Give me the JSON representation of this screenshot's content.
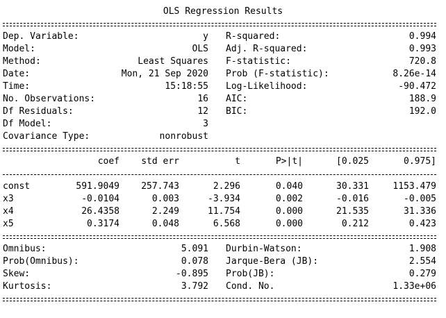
{
  "title": "OLS Regression Results",
  "summary": {
    "rows": [
      {
        "left": {
          "label": "Dep. Variable:",
          "value": "y"
        },
        "right": {
          "label": "R-squared:",
          "value": "0.994"
        }
      },
      {
        "left": {
          "label": "Model:",
          "value": "OLS"
        },
        "right": {
          "label": "Adj. R-squared:",
          "value": "0.993"
        }
      },
      {
        "left": {
          "label": "Method:",
          "value": "Least Squares"
        },
        "right": {
          "label": "F-statistic:",
          "value": "720.8"
        }
      },
      {
        "left": {
          "label": "Date:",
          "value": "Mon, 21 Sep 2020"
        },
        "right": {
          "label": "Prob (F-statistic):",
          "value": "8.26e-14"
        }
      },
      {
        "left": {
          "label": "Time:",
          "value": "15:18:55"
        },
        "right": {
          "label": "Log-Likelihood:",
          "value": "-90.472"
        }
      },
      {
        "left": {
          "label": "No. Observations:",
          "value": "16"
        },
        "right": {
          "label": "AIC:",
          "value": "188.9"
        }
      },
      {
        "left": {
          "label": "Df Residuals:",
          "value": "12"
        },
        "right": {
          "label": "BIC:",
          "value": "192.0"
        }
      },
      {
        "left": {
          "label": "Df Model:",
          "value": "3"
        }
      },
      {
        "left": {
          "label": "Covariance Type:",
          "value": "nonrobust"
        }
      }
    ]
  },
  "coefficients": {
    "header": [
      "coef",
      "std err",
      "t",
      "P>|t|",
      "[0.025",
      "0.975]"
    ],
    "rows": [
      {
        "name": "const",
        "values": [
          "591.9049",
          "257.743",
          "2.296",
          "0.040",
          "30.331",
          "1153.479"
        ]
      },
      {
        "name": "x3",
        "values": [
          "-0.0104",
          "0.003",
          "-3.934",
          "0.002",
          "-0.016",
          "-0.005"
        ]
      },
      {
        "name": "x4",
        "values": [
          "26.4358",
          "2.249",
          "11.754",
          "0.000",
          "21.535",
          "31.336"
        ]
      },
      {
        "name": "x5",
        "values": [
          "0.3174",
          "0.048",
          "6.568",
          "0.000",
          "0.212",
          "0.423"
        ]
      }
    ]
  },
  "diagnostics": {
    "rows": [
      {
        "left": {
          "label": "Omnibus:",
          "value": "5.091"
        },
        "right": {
          "label": "Durbin-Watson:",
          "value": "1.908"
        }
      },
      {
        "left": {
          "label": "Prob(Omnibus):",
          "value": "0.078"
        },
        "right": {
          "label": "Jarque-Bera (JB):",
          "value": "2.554"
        }
      },
      {
        "left": {
          "label": "Skew:",
          "value": "-0.895"
        },
        "right": {
          "label": "Prob(JB):",
          "value": "0.279"
        }
      },
      {
        "left": {
          "label": "Kurtosis:",
          "value": "3.792"
        },
        "right": {
          "label": "Cond. No.",
          "value": "1.33e+06"
        }
      }
    ]
  }
}
